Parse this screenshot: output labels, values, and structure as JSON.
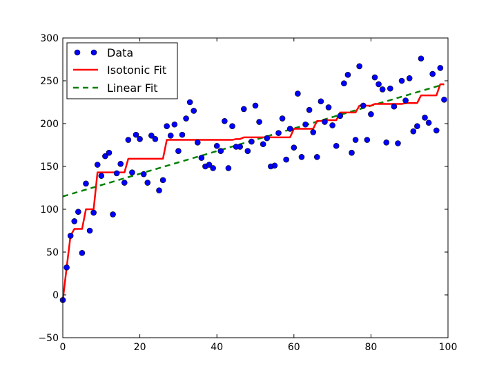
{
  "chart_data": {
    "type": "scatter",
    "title": "",
    "xlabel": "",
    "ylabel": "",
    "xlim": [
      0,
      100
    ],
    "ylim": [
      -50,
      300
    ],
    "xticks": [
      "0",
      "20",
      "40",
      "60",
      "80",
      "100"
    ],
    "yticks": [
      "−50",
      "0",
      "50",
      "100",
      "150",
      "200",
      "250",
      "300"
    ],
    "grid": false,
    "legend_position": "top-left",
    "colors": {
      "data": "#0000ff",
      "isotonic": "#ff0000",
      "linear": "#008000"
    },
    "legend": {
      "data_label": "Data",
      "isotonic_label": "Isotonic Fit",
      "linear_label": "Linear Fit"
    },
    "series": [
      {
        "name": "Data",
        "kind": "scatter",
        "points": [
          [
            0,
            -6
          ],
          [
            1,
            32
          ],
          [
            2,
            69
          ],
          [
            3,
            86
          ],
          [
            4,
            97
          ],
          [
            5,
            49
          ],
          [
            6,
            130
          ],
          [
            7,
            75
          ],
          [
            8,
            96
          ],
          [
            9,
            152
          ],
          [
            10,
            139
          ],
          [
            11,
            162
          ],
          [
            12,
            166
          ],
          [
            13,
            94
          ],
          [
            14,
            142
          ],
          [
            15,
            153
          ],
          [
            16,
            131
          ],
          [
            17,
            181
          ],
          [
            18,
            143
          ],
          [
            19,
            187
          ],
          [
            20,
            182
          ],
          [
            21,
            141
          ],
          [
            22,
            131
          ],
          [
            23,
            186
          ],
          [
            24,
            182
          ],
          [
            25,
            122
          ],
          [
            26,
            134
          ],
          [
            27,
            197
          ],
          [
            28,
            186
          ],
          [
            29,
            199
          ],
          [
            30,
            168
          ],
          [
            31,
            187
          ],
          [
            32,
            206
          ],
          [
            33,
            225
          ],
          [
            34,
            215
          ],
          [
            35,
            178
          ],
          [
            36,
            160
          ],
          [
            37,
            150
          ],
          [
            38,
            152
          ],
          [
            39,
            148
          ],
          [
            40,
            174
          ],
          [
            41,
            168
          ],
          [
            42,
            203
          ],
          [
            43,
            148
          ],
          [
            44,
            197
          ],
          [
            45,
            173
          ],
          [
            46,
            173
          ],
          [
            47,
            217
          ],
          [
            48,
            168
          ],
          [
            49,
            179
          ],
          [
            50,
            221
          ],
          [
            51,
            202
          ],
          [
            52,
            176
          ],
          [
            53,
            183
          ],
          [
            54,
            150
          ],
          [
            55,
            151
          ],
          [
            56,
            189
          ],
          [
            57,
            206
          ],
          [
            58,
            158
          ],
          [
            59,
            194
          ],
          [
            60,
            172
          ],
          [
            61,
            235
          ],
          [
            62,
            161
          ],
          [
            63,
            199
          ],
          [
            64,
            216
          ],
          [
            65,
            190
          ],
          [
            66,
            161
          ],
          [
            67,
            226
          ],
          [
            68,
            202
          ],
          [
            69,
            219
          ],
          [
            70,
            198
          ],
          [
            71,
            174
          ],
          [
            72,
            209
          ],
          [
            73,
            247
          ],
          [
            74,
            257
          ],
          [
            75,
            166
          ],
          [
            76,
            181
          ],
          [
            77,
            267
          ],
          [
            78,
            221
          ],
          [
            79,
            181
          ],
          [
            80,
            211
          ],
          [
            81,
            254
          ],
          [
            82,
            246
          ],
          [
            83,
            240
          ],
          [
            84,
            178
          ],
          [
            85,
            241
          ],
          [
            86,
            220
          ],
          [
            87,
            177
          ],
          [
            88,
            250
          ],
          [
            89,
            227
          ],
          [
            90,
            253
          ],
          [
            91,
            191
          ],
          [
            92,
            197
          ],
          [
            93,
            276
          ],
          [
            94,
            207
          ],
          [
            95,
            201
          ],
          [
            96,
            258
          ],
          [
            97,
            192
          ],
          [
            98,
            265
          ],
          [
            99,
            228
          ]
        ]
      },
      {
        "name": "Isotonic Fit",
        "kind": "line",
        "points": [
          [
            0,
            -6
          ],
          [
            1,
            32
          ],
          [
            2,
            69
          ],
          [
            3,
            77
          ],
          [
            4,
            77
          ],
          [
            5,
            77
          ],
          [
            6,
            100
          ],
          [
            7,
            100
          ],
          [
            8,
            100
          ],
          [
            9,
            143
          ],
          [
            10,
            143
          ],
          [
            11,
            143
          ],
          [
            12,
            143
          ],
          [
            13,
            143
          ],
          [
            14,
            143
          ],
          [
            15,
            143
          ],
          [
            16,
            143
          ],
          [
            17,
            159
          ],
          [
            18,
            159
          ],
          [
            19,
            159
          ],
          [
            20,
            159
          ],
          [
            21,
            159
          ],
          [
            22,
            159
          ],
          [
            23,
            159
          ],
          [
            24,
            159
          ],
          [
            25,
            159
          ],
          [
            26,
            159
          ],
          [
            27,
            181
          ],
          [
            28,
            181
          ],
          [
            29,
            181
          ],
          [
            30,
            181
          ],
          [
            31,
            181
          ],
          [
            32,
            181
          ],
          [
            33,
            181
          ],
          [
            34,
            181
          ],
          [
            35,
            181
          ],
          [
            36,
            181
          ],
          [
            37,
            181
          ],
          [
            38,
            181
          ],
          [
            39,
            181
          ],
          [
            40,
            181
          ],
          [
            41,
            181
          ],
          [
            42,
            181
          ],
          [
            43,
            181
          ],
          [
            44,
            181
          ],
          [
            45,
            182
          ],
          [
            46,
            182
          ],
          [
            47,
            184
          ],
          [
            48,
            184
          ],
          [
            49,
            184
          ],
          [
            50,
            184
          ],
          [
            51,
            184
          ],
          [
            52,
            184
          ],
          [
            53,
            184
          ],
          [
            54,
            184
          ],
          [
            55,
            184
          ],
          [
            56,
            184
          ],
          [
            57,
            184
          ],
          [
            58,
            184
          ],
          [
            59,
            184
          ],
          [
            60,
            194
          ],
          [
            61,
            194
          ],
          [
            62,
            194
          ],
          [
            63,
            194
          ],
          [
            64,
            194
          ],
          [
            65,
            194
          ],
          [
            66,
            203
          ],
          [
            67,
            203
          ],
          [
            68,
            204
          ],
          [
            69,
            204
          ],
          [
            70,
            204
          ],
          [
            71,
            204
          ],
          [
            72,
            213
          ],
          [
            73,
            213
          ],
          [
            74,
            213
          ],
          [
            75,
            213
          ],
          [
            76,
            213
          ],
          [
            77,
            221
          ],
          [
            78,
            221
          ],
          [
            79,
            221
          ],
          [
            80,
            221
          ],
          [
            81,
            223
          ],
          [
            82,
            223
          ],
          [
            83,
            223
          ],
          [
            84,
            223
          ],
          [
            85,
            223
          ],
          [
            86,
            223
          ],
          [
            87,
            223
          ],
          [
            88,
            223
          ],
          [
            89,
            224
          ],
          [
            90,
            224
          ],
          [
            91,
            224
          ],
          [
            92,
            224
          ],
          [
            93,
            233
          ],
          [
            94,
            233
          ],
          [
            95,
            233
          ],
          [
            96,
            233
          ],
          [
            97,
            233
          ],
          [
            98,
            246
          ],
          [
            99,
            246
          ]
        ]
      },
      {
        "name": "Linear Fit",
        "kind": "line",
        "style": "dashed",
        "points": [
          [
            0,
            115
          ],
          [
            99,
            246
          ]
        ]
      }
    ]
  }
}
